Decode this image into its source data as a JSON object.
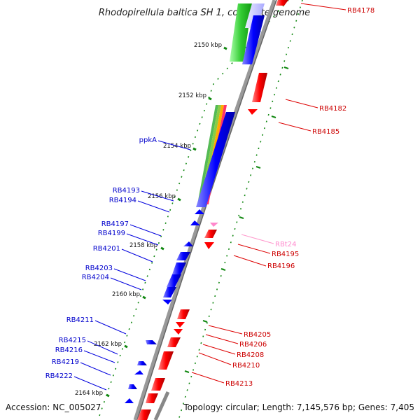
{
  "title": "Rhodopirellula baltica SH 1, complete genome",
  "accession": "Accession: NC_005027",
  "topology": "Topology: circular; Length: 7,145,576 bp; Genes: 7,405",
  "colors": {
    "forward_gene": "#0000ff",
    "reverse_gene": "#ff0000",
    "rna_gene": "#ff88cc",
    "tick": "#118811",
    "backbone": "#888888"
  },
  "ticks": [
    {
      "label": "2150 kbp"
    },
    {
      "label": "2152 kbp"
    },
    {
      "label": "2154 kbp"
    },
    {
      "label": "2156 kbp"
    },
    {
      "label": "2158 kbp"
    },
    {
      "label": "2160 kbp"
    },
    {
      "label": "2162 kbp"
    },
    {
      "label": "2164 kbp"
    }
  ],
  "left_labels": [
    {
      "label": "ppkA"
    },
    {
      "label": "RB4193"
    },
    {
      "label": "RB4194"
    },
    {
      "label": "RB4197"
    },
    {
      "label": "RB4199"
    },
    {
      "label": "RB4201"
    },
    {
      "label": "RB4203"
    },
    {
      "label": "RB4204"
    },
    {
      "label": "RB4211"
    },
    {
      "label": "RB4215"
    },
    {
      "label": "RB4216"
    },
    {
      "label": "RB4219"
    },
    {
      "label": "RB4222"
    }
  ],
  "right_labels": [
    {
      "label": "RB4178"
    },
    {
      "label": "RB4182"
    },
    {
      "label": "RB4185"
    },
    {
      "label": "RBt24"
    },
    {
      "label": "RB4195"
    },
    {
      "label": "RB4196"
    },
    {
      "label": "RB4205"
    },
    {
      "label": "RB4206"
    },
    {
      "label": "RB4208"
    },
    {
      "label": "RB4210"
    },
    {
      "label": "RB4213"
    }
  ]
}
